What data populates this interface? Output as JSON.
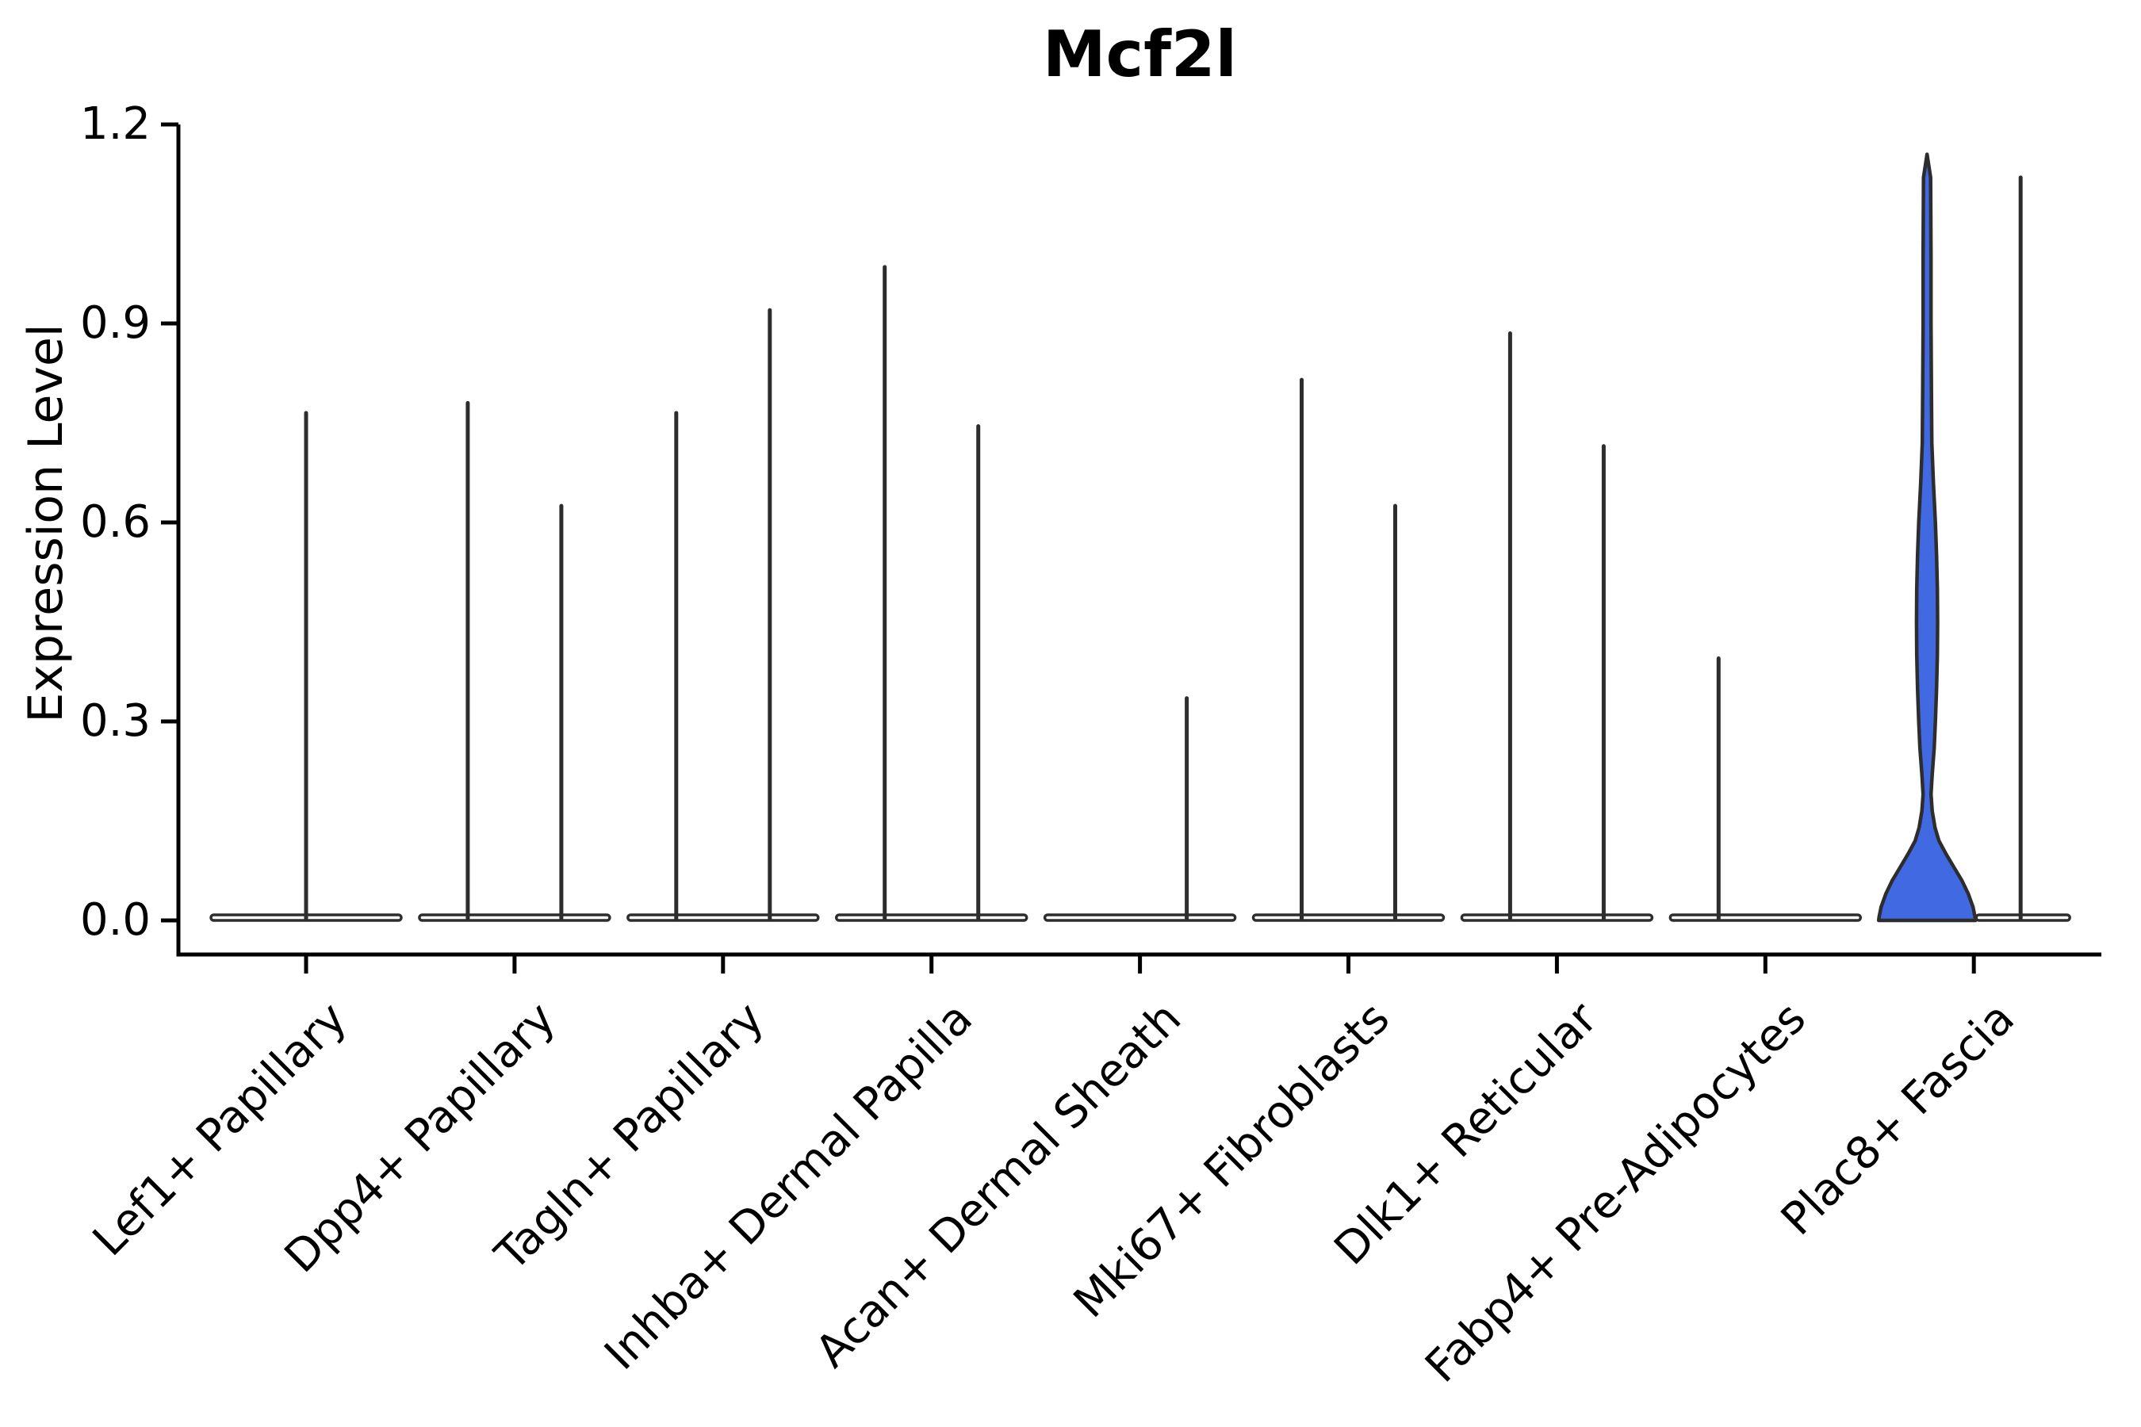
{
  "figure": {
    "title": "Mcf2l",
    "background": "#ffffff"
  },
  "chart_data": {
    "type": "violin",
    "title": "Mcf2l",
    "xlabel": "",
    "ylabel": "Expression Level",
    "yticks": [
      "0.0",
      "0.3",
      "0.6",
      "0.9",
      "1.2"
    ],
    "ytick_values": [
      0.0,
      0.3,
      0.6,
      0.9,
      1.2
    ],
    "ylim": [
      0.0,
      1.2
    ],
    "grid": false,
    "legend": "none",
    "categories": [
      "Lef1+ Papillary",
      "Dpp4+ Papillary",
      "Tagln+ Papillary",
      "Inhba+ Dermal Papilla",
      "Acan+ Dermal Sheath",
      "Mki67+ Fibroblasts",
      "Dlk1+ Reticular",
      "Fabp4+ Pre-Adipocytes",
      "Plac8+ Fascia"
    ],
    "violins": [
      {
        "category": "Lef1+ Papillary",
        "position": "center",
        "max": 0.765,
        "filled": false
      },
      {
        "category": "Dpp4+ Papillary",
        "position": "left",
        "max": 0.78,
        "filled": false
      },
      {
        "category": "Dpp4+ Papillary",
        "position": "right",
        "max": 0.625,
        "filled": false
      },
      {
        "category": "Tagln+ Papillary",
        "position": "left",
        "max": 0.765,
        "filled": false
      },
      {
        "category": "Tagln+ Papillary",
        "position": "right",
        "max": 0.92,
        "filled": false
      },
      {
        "category": "Inhba+ Dermal Papilla",
        "position": "left",
        "max": 0.985,
        "filled": false
      },
      {
        "category": "Inhba+ Dermal Papilla",
        "position": "right",
        "max": 0.745,
        "filled": false
      },
      {
        "category": "Acan+ Dermal Sheath",
        "position": "left",
        "max": 0.0,
        "filled": false
      },
      {
        "category": "Acan+ Dermal Sheath",
        "position": "right",
        "max": 0.335,
        "filled": false
      },
      {
        "category": "Mki67+ Fibroblasts",
        "position": "left",
        "max": 0.815,
        "filled": false
      },
      {
        "category": "Mki67+ Fibroblasts",
        "position": "right",
        "max": 0.625,
        "filled": false
      },
      {
        "category": "Dlk1+ Reticular",
        "position": "left",
        "max": 0.885,
        "filled": false
      },
      {
        "category": "Dlk1+ Reticular",
        "position": "right",
        "max": 0.715,
        "filled": false
      },
      {
        "category": "Fabp4+ Pre-Adipocytes",
        "position": "left",
        "max": 0.395,
        "filled": false
      },
      {
        "category": "Fabp4+ Pre-Adipocytes",
        "position": "right",
        "max": 0.0,
        "filled": false
      },
      {
        "category": "Plac8+ Fascia",
        "position": "left",
        "max": 1.155,
        "filled": true,
        "profile": [
          [
            1.155,
            0
          ],
          [
            1.12,
            4.5
          ],
          [
            1.0,
            5
          ],
          [
            0.9,
            5
          ],
          [
            0.8,
            5.5
          ],
          [
            0.72,
            6
          ],
          [
            0.66,
            8
          ],
          [
            0.6,
            10.5
          ],
          [
            0.55,
            12
          ],
          [
            0.5,
            13
          ],
          [
            0.45,
            13.3
          ],
          [
            0.4,
            13
          ],
          [
            0.35,
            12
          ],
          [
            0.3,
            10.5
          ],
          [
            0.26,
            9
          ],
          [
            0.22,
            6.5
          ],
          [
            0.19,
            5
          ],
          [
            0.165,
            6.5
          ],
          [
            0.14,
            10
          ],
          [
            0.12,
            15
          ],
          [
            0.1,
            24
          ],
          [
            0.08,
            34
          ],
          [
            0.06,
            44
          ],
          [
            0.04,
            52
          ],
          [
            0.02,
            58
          ],
          [
            0.005,
            60.5
          ],
          [
            0.0,
            61
          ]
        ]
      },
      {
        "category": "Plac8+ Fascia",
        "position": "right",
        "max": 1.12,
        "filled": false
      }
    ],
    "colors": {
      "violin_fill": "#4169e1",
      "violin_outline": "#2d2d2d",
      "axis": "#000000",
      "text": "#000000"
    }
  }
}
